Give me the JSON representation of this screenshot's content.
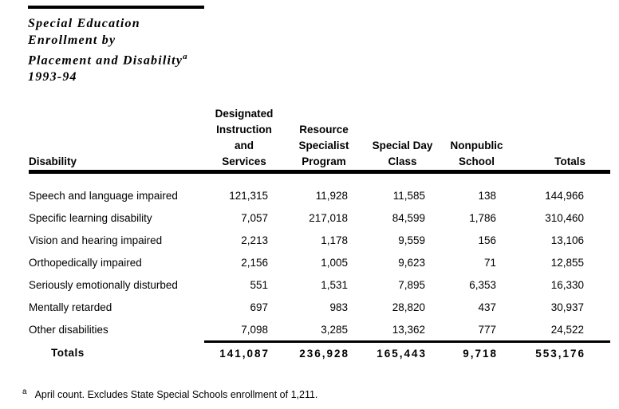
{
  "title": {
    "lines": [
      "Special Education",
      "Enrollment by",
      "Placement and Disability",
      "1993-94"
    ],
    "superscript": "a"
  },
  "table": {
    "row_header_label": "Disability",
    "columns": [
      {
        "label_lines": [
          "Designated",
          "Instruction",
          "and",
          "Services"
        ]
      },
      {
        "label_lines": [
          "Resource",
          "Specialist",
          "Program"
        ]
      },
      {
        "label_lines": [
          "Special Day",
          "Class"
        ]
      },
      {
        "label_lines": [
          "Nonpublic",
          "School"
        ]
      },
      {
        "label_lines": [
          "Totals"
        ]
      }
    ],
    "rows": [
      {
        "label": "Speech and language impaired",
        "values": [
          "121,315",
          "11,928",
          "11,585",
          "138",
          "144,966"
        ]
      },
      {
        "label": "Specific learning disability",
        "values": [
          "7,057",
          "217,018",
          "84,599",
          "1,786",
          "310,460"
        ]
      },
      {
        "label": "Vision and hearing impaired",
        "values": [
          "2,213",
          "1,178",
          "9,559",
          "156",
          "13,106"
        ]
      },
      {
        "label": "Orthopedically impaired",
        "values": [
          "2,156",
          "1,005",
          "9,623",
          "71",
          "12,855"
        ]
      },
      {
        "label": "Seriously emotionally disturbed",
        "values": [
          "551",
          "1,531",
          "7,895",
          "6,353",
          "16,330"
        ]
      },
      {
        "label": "Mentally retarded",
        "values": [
          "697",
          "983",
          "28,820",
          "437",
          "30,937"
        ]
      },
      {
        "label": "Other disabilities",
        "values": [
          "7,098",
          "3,285",
          "13,362",
          "777",
          "24,522"
        ]
      }
    ],
    "totals_row": {
      "label": "Totals",
      "values": [
        "141,087",
        "236,928",
        "165,443",
        "9,718",
        "553,176"
      ]
    }
  },
  "footnote": {
    "marker": "a",
    "text": "April count. Excludes State Special Schools enrollment of 1,211."
  },
  "colors": {
    "text": "#000000",
    "background": "#ffffff",
    "rule": "#000000"
  }
}
